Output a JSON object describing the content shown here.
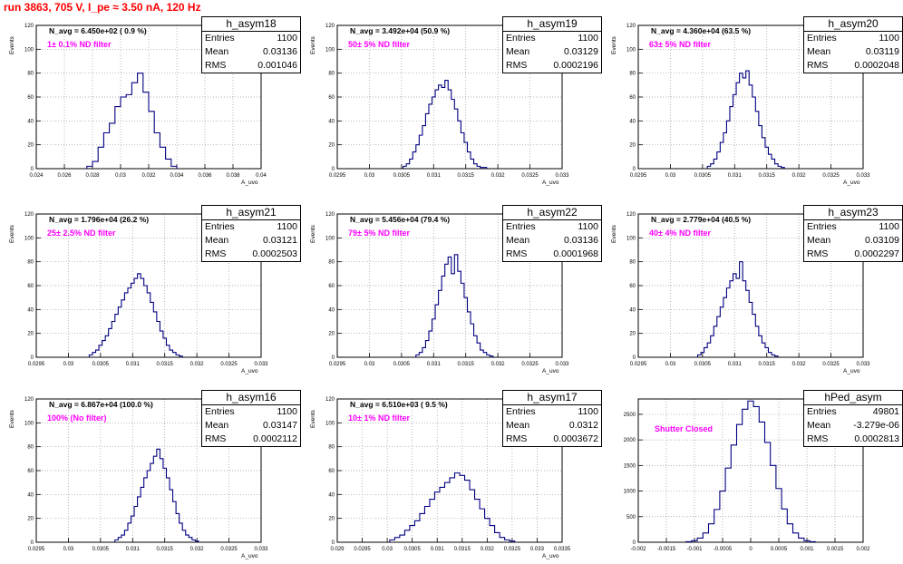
{
  "page_title": "run 3863,   705 V, I_pe ≈ 3.50 nA, 120 Hz",
  "colors": {
    "title": "#ff0000",
    "filter_text": "#ff00ff",
    "histogram_line": "#000080",
    "grid": "#999999"
  },
  "chart_data": [
    {
      "type": "bar",
      "name": "h_asym18",
      "navg": "N_avg = 6.450e+02 ( 0.9 %)",
      "filter": "1± 0.1% ND filter",
      "stats": {
        "entries": "1100",
        "mean": "0.03136",
        "rms": "0.001046"
      },
      "ylabel": "Events",
      "xlabel": "A_uvo",
      "xlim": [
        0.024,
        0.04
      ],
      "ylim": [
        0,
        120
      ],
      "xticks": [
        "0.024",
        "0.026",
        "0.028",
        "0.03",
        "0.032",
        "0.034",
        "0.036",
        "0.038",
        "0.04"
      ],
      "yticks": [
        "0",
        "20",
        "40",
        "60",
        "80",
        "100",
        "120"
      ],
      "x": [
        0.0278,
        0.0282,
        0.0286,
        0.029,
        0.0294,
        0.0298,
        0.0302,
        0.0306,
        0.031,
        0.0314,
        0.0318,
        0.0322,
        0.0326,
        0.033,
        0.0334,
        0.0338
      ],
      "values": [
        2,
        6,
        18,
        30,
        38,
        52,
        60,
        62,
        72,
        80,
        64,
        48,
        30,
        18,
        8,
        2
      ]
    },
    {
      "type": "bar",
      "name": "h_asym19",
      "navg": "N_avg = 3.492e+04 (50.9 %)",
      "filter": "50± 5% ND filter",
      "stats": {
        "entries": "1100",
        "mean": "0.03129",
        "rms": "0.0002196"
      },
      "ylabel": "Events",
      "xlabel": "A_uvo",
      "xlim": [
        0.0295,
        0.033
      ],
      "ylim": [
        0,
        120
      ],
      "xticks": [
        "0.0295",
        "0.03",
        "0.0305",
        "0.031",
        "0.0315",
        "0.032",
        "0.0325",
        "0.033"
      ],
      "yticks": [
        "0",
        "20",
        "40",
        "60",
        "80",
        "100",
        "120"
      ],
      "x": [
        0.03055,
        0.0306,
        0.03065,
        0.0307,
        0.03075,
        0.0308,
        0.03085,
        0.0309,
        0.03095,
        0.031,
        0.03105,
        0.0311,
        0.03115,
        0.0312,
        0.03125,
        0.0313,
        0.03135,
        0.0314,
        0.03145,
        0.0315,
        0.03155,
        0.0316,
        0.03165,
        0.0317,
        0.03175,
        0.0318
      ],
      "values": [
        2,
        4,
        8,
        14,
        20,
        28,
        36,
        46,
        54,
        60,
        66,
        70,
        68,
        74,
        66,
        58,
        50,
        40,
        30,
        22,
        14,
        8,
        4,
        2,
        1,
        1
      ]
    },
    {
      "type": "bar",
      "name": "h_asym20",
      "navg": "N_avg = 4.360e+04 (63.5 %)",
      "filter": "63± 5% ND filter",
      "stats": {
        "entries": "1100",
        "mean": "0.03119",
        "rms": "0.0002048"
      },
      "ylabel": "Events",
      "xlabel": "A_uvo",
      "xlim": [
        0.0295,
        0.033
      ],
      "ylim": [
        0,
        120
      ],
      "xticks": [
        "0.0295",
        "0.03",
        "0.0305",
        "0.031",
        "0.0315",
        "0.032",
        "0.0325",
        "0.033"
      ],
      "yticks": [
        "0",
        "20",
        "40",
        "60",
        "80",
        "100",
        "120"
      ],
      "x": [
        0.0306,
        0.03065,
        0.0307,
        0.03075,
        0.0308,
        0.03085,
        0.0309,
        0.03095,
        0.031,
        0.03105,
        0.0311,
        0.03115,
        0.0312,
        0.03125,
        0.0313,
        0.03135,
        0.0314,
        0.03145,
        0.0315,
        0.03155,
        0.0316,
        0.03165,
        0.0317,
        0.03175
      ],
      "values": [
        2,
        4,
        8,
        14,
        22,
        30,
        40,
        52,
        62,
        72,
        80,
        76,
        82,
        70,
        60,
        48,
        36,
        26,
        18,
        12,
        8,
        4,
        2,
        1
      ]
    },
    {
      "type": "bar",
      "name": "h_asym21",
      "navg": "N_avg = 1.796e+04 (26.2 %)",
      "filter": "25± 2.5% ND filter",
      "stats": {
        "entries": "1100",
        "mean": "0.03121",
        "rms": "0.0002503"
      },
      "ylabel": "Events",
      "xlabel": "A_uvo",
      "xlim": [
        0.0295,
        0.033
      ],
      "ylim": [
        0,
        120
      ],
      "xticks": [
        "0.0295",
        "0.03",
        "0.0305",
        "0.031",
        "0.0315",
        "0.032",
        "0.0325",
        "0.033"
      ],
      "yticks": [
        "0",
        "20",
        "40",
        "60",
        "80",
        "100",
        "120"
      ],
      "x": [
        0.03035,
        0.0304,
        0.03045,
        0.0305,
        0.03055,
        0.0306,
        0.03065,
        0.0307,
        0.03075,
        0.0308,
        0.03085,
        0.0309,
        0.03095,
        0.031,
        0.03105,
        0.0311,
        0.03115,
        0.0312,
        0.03125,
        0.0313,
        0.03135,
        0.0314,
        0.03145,
        0.0315,
        0.03155,
        0.0316,
        0.03165,
        0.0317,
        0.03175
      ],
      "values": [
        2,
        4,
        6,
        10,
        14,
        18,
        24,
        30,
        36,
        42,
        48,
        54,
        58,
        62,
        66,
        70,
        66,
        60,
        54,
        46,
        38,
        30,
        22,
        16,
        10,
        6,
        4,
        2,
        1
      ]
    },
    {
      "type": "bar",
      "name": "h_asym22",
      "navg": "N_avg = 5.456e+04 (79.4 %)",
      "filter": "79± 5% ND filter",
      "stats": {
        "entries": "1100",
        "mean": "0.03136",
        "rms": "0.0001968"
      },
      "ylabel": "Events",
      "xlabel": "A_uvo",
      "xlim": [
        0.0295,
        0.033
      ],
      "ylim": [
        0,
        120
      ],
      "xticks": [
        "0.0295",
        "0.03",
        "0.0305",
        "0.031",
        "0.0315",
        "0.032",
        "0.0325",
        "0.033"
      ],
      "yticks": [
        "0",
        "20",
        "40",
        "60",
        "80",
        "100",
        "120"
      ],
      "x": [
        0.03075,
        0.0308,
        0.03085,
        0.0309,
        0.03095,
        0.031,
        0.03105,
        0.0311,
        0.03115,
        0.0312,
        0.03125,
        0.0313,
        0.03135,
        0.0314,
        0.03145,
        0.0315,
        0.03155,
        0.0316,
        0.03165,
        0.0317,
        0.03175,
        0.0318,
        0.03185,
        0.0319
      ],
      "values": [
        2,
        4,
        8,
        14,
        22,
        32,
        44,
        56,
        68,
        78,
        84,
        70,
        86,
        72,
        62,
        50,
        38,
        28,
        18,
        12,
        6,
        4,
        2,
        1
      ]
    },
    {
      "type": "bar",
      "name": "h_asym23",
      "navg": "N_avg = 2.779e+04 (40.5 %)",
      "filter": "40± 4% ND filter",
      "stats": {
        "entries": "1100",
        "mean": "0.03109",
        "rms": "0.0002297"
      },
      "ylabel": "Events",
      "xlabel": "A_uvo",
      "xlim": [
        0.0295,
        0.033
      ],
      "ylim": [
        0,
        120
      ],
      "xticks": [
        "0.0295",
        "0.03",
        "0.0305",
        "0.031",
        "0.0315",
        "0.032",
        "0.0325",
        "0.033"
      ],
      "yticks": [
        "0",
        "20",
        "40",
        "60",
        "80",
        "100",
        "120"
      ],
      "x": [
        0.03045,
        0.0305,
        0.03055,
        0.0306,
        0.03065,
        0.0307,
        0.03075,
        0.0308,
        0.03085,
        0.0309,
        0.03095,
        0.031,
        0.03105,
        0.0311,
        0.03115,
        0.0312,
        0.03125,
        0.0313,
        0.03135,
        0.0314,
        0.03145,
        0.0315,
        0.03155,
        0.0316,
        0.03165
      ],
      "values": [
        2,
        4,
        8,
        12,
        18,
        26,
        34,
        42,
        50,
        58,
        64,
        70,
        66,
        80,
        64,
        56,
        46,
        36,
        26,
        18,
        12,
        8,
        4,
        2,
        1
      ]
    },
    {
      "type": "bar",
      "name": "h_asym16",
      "navg": "N_avg = 6.867e+04 (100.0 %)",
      "filter": "100% (No filter)",
      "stats": {
        "entries": "1100",
        "mean": "0.03147",
        "rms": "0.0002112"
      },
      "ylabel": "Events",
      "xlabel": "A_uvo",
      "xlim": [
        0.0295,
        0.033
      ],
      "ylim": [
        0,
        120
      ],
      "xticks": [
        "0.0295",
        "0.03",
        "0.0305",
        "0.031",
        "0.0315",
        "0.032",
        "0.0325",
        "0.033"
      ],
      "yticks": [
        "0",
        "20",
        "40",
        "60",
        "80",
        "100",
        "120"
      ],
      "x": [
        0.03075,
        0.0308,
        0.03085,
        0.0309,
        0.03095,
        0.031,
        0.03105,
        0.0311,
        0.03115,
        0.0312,
        0.03125,
        0.0313,
        0.03135,
        0.0314,
        0.03145,
        0.0315,
        0.03155,
        0.0316,
        0.03165,
        0.0317,
        0.03175,
        0.0318,
        0.03185,
        0.0319,
        0.03195,
        0.032
      ],
      "values": [
        2,
        4,
        6,
        10,
        16,
        22,
        30,
        38,
        46,
        54,
        60,
        66,
        72,
        78,
        70,
        62,
        54,
        44,
        34,
        24,
        16,
        10,
        6,
        4,
        2,
        1
      ]
    },
    {
      "type": "bar",
      "name": "h_asym17",
      "navg": "N_avg = 6.510e+03 ( 9.5 %)",
      "filter": "10± 1% ND filter",
      "stats": {
        "entries": "1100",
        "mean": "0.0312",
        "rms": "0.0003672"
      },
      "ylabel": "Events",
      "xlabel": "A_uvo",
      "xlim": [
        0.029,
        0.0335
      ],
      "ylim": [
        0,
        120
      ],
      "xticks": [
        "0.029",
        "0.0295",
        "0.03",
        "0.0305",
        "0.031",
        "0.0315",
        "0.032",
        "0.0325",
        "0.033",
        "0.0335"
      ],
      "yticks": [
        "0",
        "20",
        "40",
        "60",
        "80",
        "100",
        "120"
      ],
      "x": [
        0.0301,
        0.0302,
        0.0303,
        0.0304,
        0.0305,
        0.0306,
        0.0307,
        0.0308,
        0.0309,
        0.031,
        0.0311,
        0.0312,
        0.0313,
        0.0314,
        0.0315,
        0.0316,
        0.0317,
        0.0318,
        0.0319,
        0.032,
        0.0321,
        0.0322,
        0.0323,
        0.0324,
        0.0325
      ],
      "values": [
        2,
        4,
        6,
        10,
        14,
        18,
        24,
        30,
        36,
        42,
        46,
        50,
        54,
        58,
        56,
        52,
        44,
        36,
        28,
        20,
        14,
        8,
        4,
        2,
        1
      ]
    },
    {
      "type": "bar",
      "name": "hPed_asym",
      "navg": "",
      "filter": "Shutter Closed",
      "stats": {
        "entries": "49801",
        "mean": "-3.279e-06",
        "rms": "0.0002813"
      },
      "ylabel": "",
      "xlabel": "",
      "xlim": [
        -0.002,
        0.002
      ],
      "ylim": [
        0,
        2800
      ],
      "xticks": [
        "-0.002",
        "-0.0015",
        "-0.001",
        "-0.0005",
        "0",
        "0.0005",
        "0.001",
        "0.0015",
        "0.002"
      ],
      "yticks": [
        "0",
        "500",
        "1000",
        "1500",
        "2000",
        "2500"
      ],
      "x": [
        -0.0011,
        -0.001,
        -0.0009,
        -0.0008,
        -0.0007,
        -0.0006,
        -0.0005,
        -0.0004,
        -0.0003,
        -0.0002,
        -0.0001,
        0,
        0.0001,
        0.0002,
        0.0003,
        0.0004,
        0.0005,
        0.0006,
        0.0007,
        0.0008,
        0.0009,
        0.001,
        0.0011
      ],
      "values": [
        10,
        30,
        80,
        180,
        360,
        640,
        1000,
        1450,
        1900,
        2300,
        2600,
        2760,
        2650,
        2350,
        1950,
        1500,
        1050,
        650,
        360,
        180,
        80,
        30,
        10
      ]
    }
  ]
}
